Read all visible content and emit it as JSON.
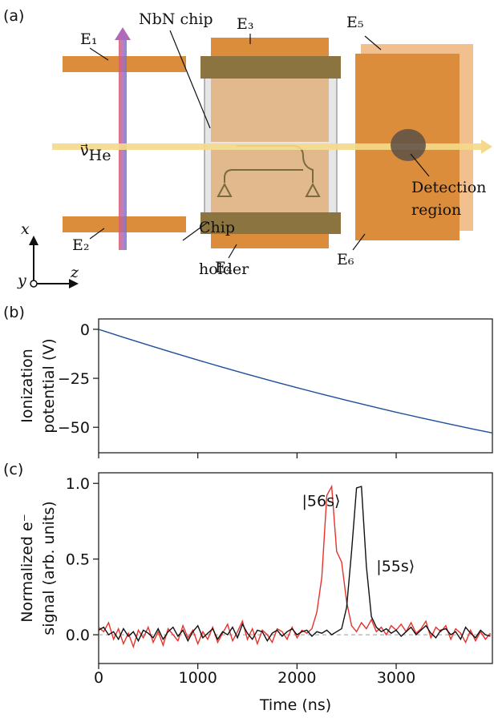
{
  "panel_labels": [
    "(a)",
    "(b)",
    "(c)"
  ],
  "diagram": {
    "electrodes": [
      "E₁",
      "E₂",
      "E₃",
      "E₄",
      "E₅",
      "E₆"
    ],
    "chip_label": "NbN chip",
    "beam": {
      "symbol": "ν⃗",
      "sub": "He"
    },
    "holder_label": [
      "Chip",
      "holder"
    ],
    "detection_label": [
      "Detection",
      "region"
    ],
    "axes": [
      "x",
      "y",
      "z"
    ]
  },
  "chart_data": [
    {
      "type": "line",
      "ylabel": [
        "Ionization",
        "potential (V)"
      ],
      "x": [
        0,
        250,
        500,
        750,
        1000,
        1250,
        1500,
        1750,
        2000,
        2250,
        2500,
        2750,
        3000,
        3250,
        3500,
        3750,
        3970
      ],
      "series": [
        {
          "color": "#1f4e9c",
          "values": [
            0,
            -4.08,
            -8.05,
            -11.93,
            -15.7,
            -19.38,
            -22.95,
            -26.43,
            -29.8,
            -33.08,
            -36.25,
            -39.33,
            -42.3,
            -45.18,
            -47.95,
            -50.63,
            -52.9
          ]
        }
      ],
      "xlim": [
        0,
        3970
      ],
      "xticks": [
        0,
        1000,
        2000,
        3000
      ],
      "show_xtick_labels": false,
      "ylim": [
        -63,
        5.3
      ],
      "yticks": [
        0,
        {
          "value": -25,
          "label": "−25"
        },
        {
          "value": -50,
          "label": "−50"
        }
      ]
    },
    {
      "type": "line",
      "ylabel": [
        "Normalized e⁻",
        "signal (arb. units)"
      ],
      "xlabel": "Time (ns)",
      "x": [
        0,
        50,
        100,
        150,
        200,
        250,
        300,
        350,
        400,
        450,
        500,
        550,
        600,
        650,
        700,
        750,
        800,
        850,
        900,
        950,
        1000,
        1050,
        1100,
        1150,
        1200,
        1250,
        1300,
        1350,
        1400,
        1450,
        1500,
        1550,
        1600,
        1650,
        1700,
        1750,
        1800,
        1850,
        1900,
        1950,
        2000,
        2050,
        2100,
        2150,
        2200,
        2250,
        2300,
        2350,
        2400,
        2450,
        2500,
        2550,
        2600,
        2650,
        2700,
        2750,
        2800,
        2850,
        2900,
        2950,
        3000,
        3050,
        3100,
        3150,
        3200,
        3250,
        3300,
        3350,
        3400,
        3450,
        3500,
        3550,
        3600,
        3650,
        3700,
        3750,
        3800,
        3850,
        3900,
        3950
      ],
      "series": [
        {
          "color": "#e8312a",
          "values": [
            0.05,
            0.02,
            0.08,
            -0.03,
            0.04,
            -0.06,
            0.01,
            -0.08,
            0.03,
            -0.02,
            0.05,
            -0.05,
            0.02,
            -0.07,
            0.04,
            0.0,
            -0.04,
            0.06,
            -0.02,
            0.03,
            -0.06,
            0.02,
            -0.03,
            0.05,
            -0.05,
            0.01,
            0.07,
            -0.04,
            0.02,
            0.09,
            -0.03,
            0.04,
            -0.06,
            0.03,
            0.0,
            -0.05,
            0.04,
            0.02,
            -0.03,
            0.05,
            -0.02,
            0.03,
            0.01,
            0.04,
            0.15,
            0.38,
            0.92,
            0.98,
            0.55,
            0.48,
            0.22,
            0.06,
            0.02,
            0.08,
            0.04,
            0.1,
            0.02,
            0.05,
            0.0,
            0.06,
            0.03,
            0.07,
            0.02,
            0.08,
            0.01,
            0.04,
            0.09,
            -0.02,
            0.05,
            0.02,
            0.06,
            -0.03,
            0.04,
            0.01,
            -0.05,
            0.03,
            -0.04,
            0.02,
            -0.03,
            0.01
          ]
        },
        {
          "color": "#111111",
          "values": [
            0.03,
            0.05,
            0.0,
            0.02,
            -0.03,
            0.04,
            -0.01,
            0.02,
            -0.04,
            0.03,
            0.01,
            -0.02,
            0.04,
            -0.03,
            0.02,
            0.05,
            -0.01,
            0.03,
            -0.04,
            0.02,
            0.06,
            -0.02,
            0.01,
            0.04,
            -0.03,
            0.02,
            0.0,
            0.05,
            -0.02,
            0.07,
            0.01,
            -0.03,
            0.03,
            0.02,
            -0.04,
            0.01,
            0.03,
            -0.01,
            0.02,
            0.04,
            0.0,
            0.02,
            0.03,
            -0.01,
            0.02,
            0.01,
            0.03,
            0.0,
            0.02,
            0.04,
            0.18,
            0.55,
            0.97,
            0.98,
            0.45,
            0.12,
            0.05,
            0.02,
            0.04,
            0.01,
            0.03,
            -0.01,
            0.02,
            0.05,
            0.0,
            0.03,
            0.06,
            0.01,
            -0.02,
            0.03,
            0.04,
            0.0,
            0.02,
            -0.03,
            0.05,
            0.01,
            -0.02,
            0.03,
            0.0,
            -0.01
          ]
        }
      ],
      "annotations": [
        {
          "text": "|56s⟩",
          "color": "#e8312a",
          "x": 2050,
          "y": 0.85
        },
        {
          "text": "|55s⟩",
          "color": "#111111",
          "x": 2800,
          "y": 0.42
        }
      ],
      "reference_line": 0,
      "xlim": [
        0,
        3970
      ],
      "xticks": [
        0,
        1000,
        2000,
        3000
      ],
      "show_xtick_labels": true,
      "ylim": [
        -0.19,
        1.07
      ],
      "yticks": [
        {
          "value": 0,
          "label": "0.0"
        },
        {
          "value": 0.5,
          "label": "0.5"
        },
        {
          "value": 1,
          "label": "1.0"
        }
      ]
    }
  ]
}
